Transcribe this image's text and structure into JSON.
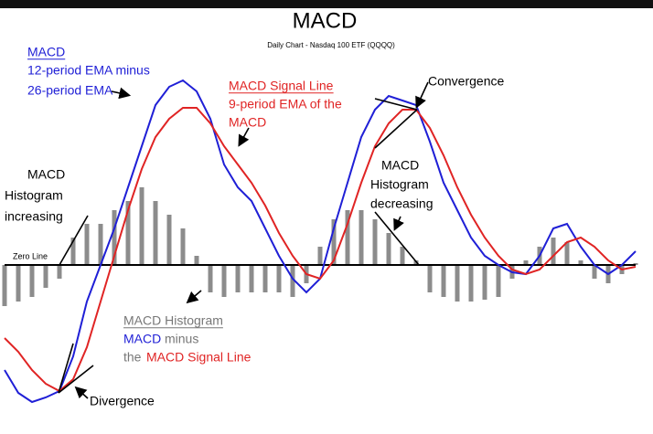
{
  "chart_data": {
    "type": "line",
    "title": "MACD",
    "subtitle": "Daily Chart - Nasdaq 100 ETF (QQQQ)",
    "x": [
      0,
      15,
      30,
      45,
      60,
      75,
      90,
      105,
      120,
      135,
      150,
      165,
      180,
      195,
      210,
      225,
      240,
      255,
      270,
      285,
      300,
      315,
      330,
      345,
      360,
      375,
      390,
      405,
      420,
      435,
      450,
      465,
      480,
      495,
      510,
      525,
      540,
      555,
      570,
      585,
      600,
      615,
      630,
      645,
      660,
      675,
      690
    ],
    "xlim": [
      0,
      690
    ],
    "ylim": [
      -1.7,
      2.1
    ],
    "series": [
      {
        "name": "MACD",
        "color": "#1f1fd6",
        "values": [
          -1.15,
          -1.4,
          -1.5,
          -1.45,
          -1.38,
          -1,
          -0.4,
          0,
          0.4,
          0.85,
          1.3,
          1.75,
          1.95,
          2.02,
          1.9,
          1.6,
          1.1,
          0.85,
          0.7,
          0.4,
          0.1,
          -0.15,
          -0.3,
          -0.15,
          0.4,
          0.9,
          1.4,
          1.7,
          1.85,
          1.8,
          1.75,
          1.35,
          0.9,
          0.6,
          0.3,
          0.1,
          0,
          -0.08,
          -0.1,
          0.1,
          0.4,
          0.45,
          0.2,
          0,
          -0.1,
          0,
          0.15
        ]
      },
      {
        "name": "MACD Signal Line",
        "color": "#e02424",
        "values": [
          -0.8,
          -0.95,
          -1.15,
          -1.3,
          -1.38,
          -1.25,
          -0.9,
          -0.4,
          0.1,
          0.6,
          1.05,
          1.4,
          1.6,
          1.72,
          1.72,
          1.55,
          1.3,
          1.1,
          0.9,
          0.65,
          0.35,
          0.1,
          -0.1,
          -0.15,
          0.05,
          0.45,
          0.9,
          1.3,
          1.55,
          1.7,
          1.7,
          1.5,
          1.2,
          0.85,
          0.55,
          0.3,
          0.1,
          -0.05,
          -0.1,
          -0.05,
          0.1,
          0.25,
          0.3,
          0.2,
          0.05,
          -0.05,
          -0.02
        ]
      }
    ],
    "histogram": {
      "name": "MACD Histogram",
      "color": "#8c8c8c",
      "values": [
        -0.45,
        -0.4,
        -0.35,
        -0.25,
        -0.15,
        0.3,
        0.45,
        0.45,
        0.6,
        0.7,
        0.85,
        0.7,
        0.55,
        0.4,
        0.1,
        -0.3,
        -0.35,
        -0.3,
        -0.3,
        -0.3,
        -0.3,
        -0.35,
        -0.2,
        0.2,
        0.5,
        0.6,
        0.6,
        0.5,
        0.35,
        0.2,
        0.05,
        -0.3,
        -0.35,
        -0.4,
        -0.4,
        -0.38,
        -0.35,
        -0.15,
        0.05,
        0.2,
        0.3,
        0.25,
        0.05,
        -0.15,
        -0.2,
        -0.1,
        0.02
      ]
    },
    "annotations": [
      "MACD",
      "12-period EMA minus",
      "26-period EMA",
      "MACD Signal Line",
      "9-period EMA of the",
      "MACD",
      "Convergence",
      "MACD",
      "Histogram",
      "increasing",
      "Zero Line",
      "MACD",
      "Histogram",
      "decreasing",
      "MACD Histogram",
      "MACD",
      "minus",
      "the",
      "MACD Signal Line",
      "Divergence"
    ]
  }
}
